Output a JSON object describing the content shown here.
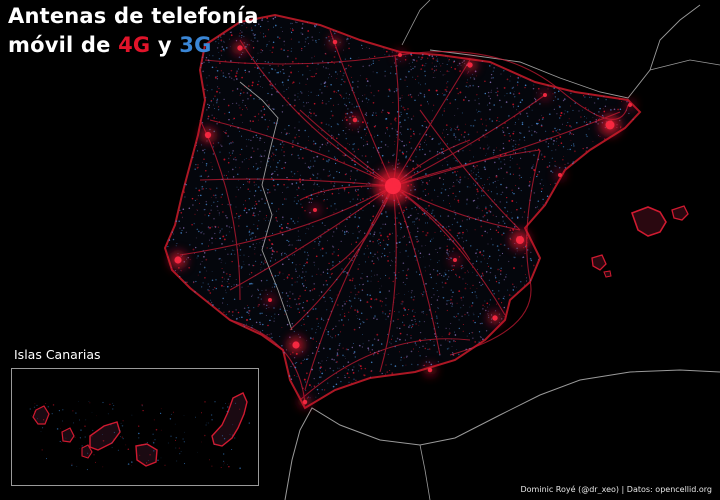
{
  "title": {
    "line1": "Antenas de telefonía",
    "line2_prefix": "móvil de ",
    "term_4g": "4G",
    "connector": " y ",
    "term_3g": "3G"
  },
  "inset": {
    "label": "Islas Canarias"
  },
  "credit": "Dominic Royé (@dr_xeo) | Datos: opencellid.org",
  "colors": {
    "background": "#000000",
    "lte_4g": "#e0142a",
    "umts_3g": "#3a86d6",
    "border": "#8c8c8c"
  },
  "legend_encoding": {
    "4G": "red",
    "3G": "blue"
  }
}
